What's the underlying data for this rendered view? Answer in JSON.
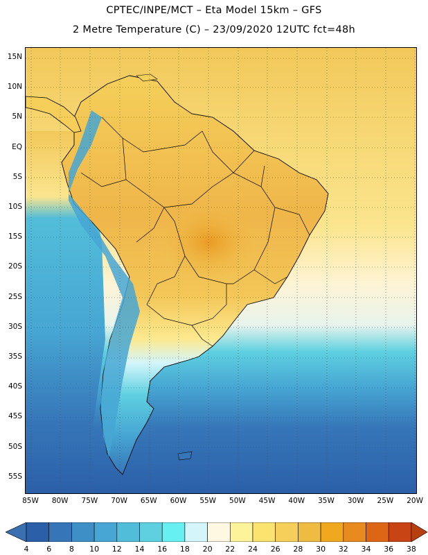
{
  "header": {
    "line1": "CPTEC/INPE/MCT –  Eta Model 15km – GFS",
    "line2": "2 Metre Temperature (C) – 23/09/2020 12UTC fct=48h"
  },
  "map": {
    "lat_labels": [
      "15N",
      "10N",
      "5N",
      "EQ",
      "5S",
      "10S",
      "15S",
      "20S",
      "25S",
      "30S",
      "35S",
      "40S",
      "45S",
      "50S",
      "55S"
    ],
    "lon_labels": [
      "85W",
      "80W",
      "75W",
      "70W",
      "65W",
      "60W",
      "55W",
      "50W",
      "45W",
      "40W",
      "35W",
      "30W",
      "25W",
      "20W"
    ],
    "ocean_color": "#2f78b8",
    "land_color": "#f2c452"
  },
  "colorbar": {
    "labels": [
      "4",
      "6",
      "8",
      "10",
      "12",
      "14",
      "16",
      "18",
      "20",
      "22",
      "24",
      "26",
      "28",
      "30",
      "32",
      "34",
      "36",
      "38"
    ],
    "colors": [
      "#2b5fa8",
      "#3676b8",
      "#3f8fc7",
      "#47a6d3",
      "#52bdd9",
      "#5fd0e0",
      "#66f0f2",
      "#d4f6fb",
      "#fef8e2",
      "#fdf39a",
      "#fce36f",
      "#f5cf5a",
      "#efbc43",
      "#f0a81e",
      "#e88a1d",
      "#dc6616",
      "#c84414"
    ],
    "low_arrow_color": "#3a6fb0",
    "high_arrow_color": "#b8400f"
  }
}
